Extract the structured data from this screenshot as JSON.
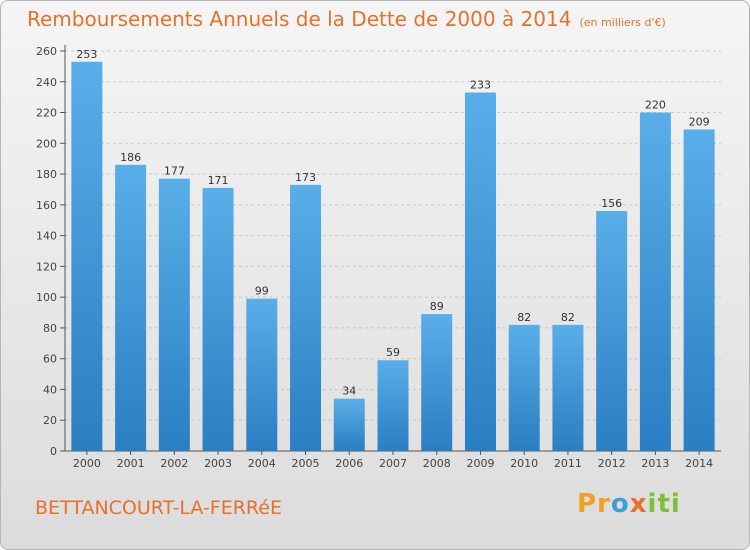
{
  "title": "Remboursements Annuels de la Dette de 2000 à 2014",
  "unit": "(en milliers d'€)",
  "commune": "BETTANCOURT-LA-FERRéE",
  "logo": {
    "p1": "Pr",
    "p2": "o",
    "p3": "x",
    "p4": "iti"
  },
  "colors": {
    "bar_top": "#5aaee8",
    "bar_bottom": "#2a7ec2",
    "title": "#e8702a",
    "grid": "#c8c8c8"
  },
  "chart_data": {
    "type": "bar",
    "title": "Remboursements Annuels de la Dette de 2000 à 2014",
    "ylabel": "en milliers d'€",
    "xlabel": "",
    "categories": [
      "2000",
      "2001",
      "2002",
      "2003",
      "2004",
      "2005",
      "2006",
      "2007",
      "2008",
      "2009",
      "2010",
      "2011",
      "2012",
      "2013",
      "2014"
    ],
    "values": [
      253,
      186,
      177,
      171,
      99,
      173,
      34,
      59,
      89,
      233,
      82,
      82,
      156,
      220,
      209
    ],
    "ylim": [
      0,
      260
    ],
    "yticks": [
      0,
      20,
      40,
      60,
      80,
      100,
      120,
      140,
      160,
      180,
      200,
      220,
      240,
      260
    ],
    "grid": true
  }
}
